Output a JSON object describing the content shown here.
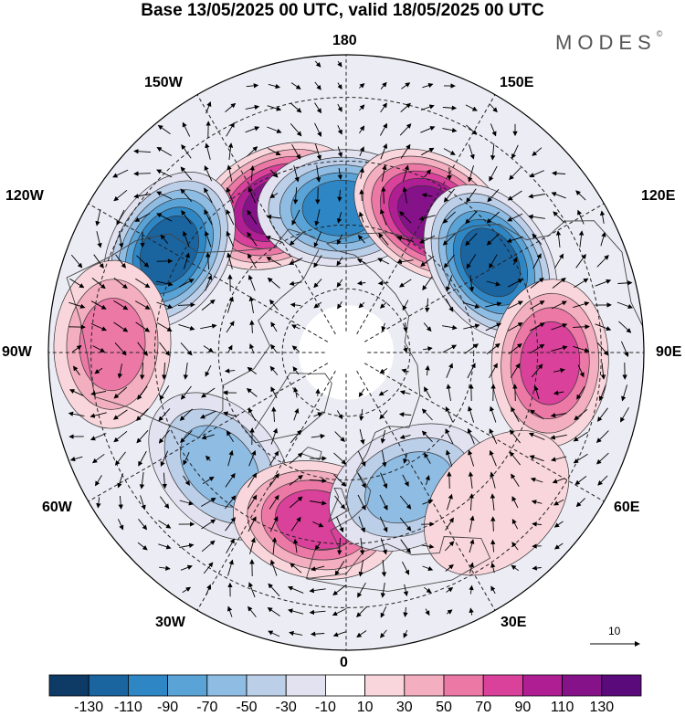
{
  "title": "Base 13/05/2025 00 UTC, valid 18/05/2025 00 UTC",
  "brand": "MODES",
  "brand_mark": "©",
  "longitude_labels": {
    "n180": "180",
    "w150": "150W",
    "e150": "150E",
    "w120": "120W",
    "e120": "120E",
    "w90": "90W",
    "e90": "90E",
    "w60": "60W",
    "e60": "60E",
    "w30": "30W",
    "e30": "30E",
    "s0": "0"
  },
  "reference_vector": {
    "label": "10"
  },
  "colorbar": {
    "colors": [
      "#0d3b66",
      "#1a64a0",
      "#2f86c4",
      "#5aa3d6",
      "#8fbce3",
      "#bccfe9",
      "#e2e2f1",
      "#ffffff",
      "#f9d6dc",
      "#f3aebf",
      "#ec78a6",
      "#d9419a",
      "#b01e93",
      "#86128a",
      "#5a0a7a"
    ],
    "tick_labels": [
      "-130",
      "-110",
      "-90",
      "-70",
      "-50",
      "-30",
      "-10",
      "10",
      "30",
      "50",
      "70",
      "90",
      "110",
      "130"
    ]
  },
  "anomaly_centers": [
    {
      "name": "positive-center-150w",
      "sign": "positive",
      "lon": -155,
      "lat": 52,
      "peak": 130
    },
    {
      "name": "negative-center-170e",
      "sign": "negative",
      "lon": -178,
      "lat": 56,
      "peak": -110
    },
    {
      "name": "positive-center-150e",
      "sign": "positive",
      "lon": 148,
      "lat": 52,
      "peak": 130
    },
    {
      "name": "negative-center-125e",
      "sign": "negative",
      "lon": 122,
      "lat": 50,
      "peak": -130
    },
    {
      "name": "negative-center-120w",
      "sign": "negative",
      "lon": -120,
      "lat": 42,
      "peak": -130
    },
    {
      "name": "positive-center-90w",
      "sign": "positive",
      "lon": -92,
      "lat": 35,
      "peak": 70
    },
    {
      "name": "positive-center-90e",
      "sign": "positive",
      "lon": 87,
      "lat": 42,
      "peak": 90
    },
    {
      "name": "negative-center-50w",
      "sign": "negative",
      "lon": -48,
      "lat": 50,
      "peak": -70
    },
    {
      "name": "positive-center-10w",
      "sign": "positive",
      "lon": -10,
      "lat": 50,
      "peak": 90
    },
    {
      "name": "negative-center-25e",
      "sign": "negative",
      "lon": 25,
      "lat": 55,
      "peak": -70
    },
    {
      "name": "positive-center-40e",
      "sign": "positive",
      "lon": 45,
      "lat": 40,
      "peak": 30
    }
  ]
}
